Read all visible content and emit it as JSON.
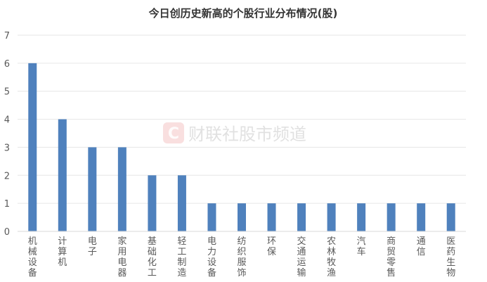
{
  "chart_data": {
    "type": "bar",
    "title": "今日创历史新高的个股行业分布情况(股)",
    "xlabel": "",
    "ylabel": "",
    "ylim": [
      0,
      7
    ],
    "yticks": [
      0,
      1,
      2,
      3,
      4,
      5,
      6,
      7
    ],
    "grid": true,
    "categories": [
      "机械设备",
      "计算机",
      "电子",
      "家用电器",
      "基础化工",
      "轻工制造",
      "电力设备",
      "纺织服饰",
      "环保",
      "交通运输",
      "农林牧渔",
      "汽车",
      "商贸零售",
      "通信",
      "医药生物"
    ],
    "values": [
      6,
      4,
      3,
      3,
      2,
      2,
      1,
      1,
      1,
      1,
      1,
      1,
      1,
      1,
      1
    ],
    "bar_color": "#4f81bd"
  },
  "watermark": {
    "logo_letter": "C",
    "text": "财联社股市频道"
  }
}
